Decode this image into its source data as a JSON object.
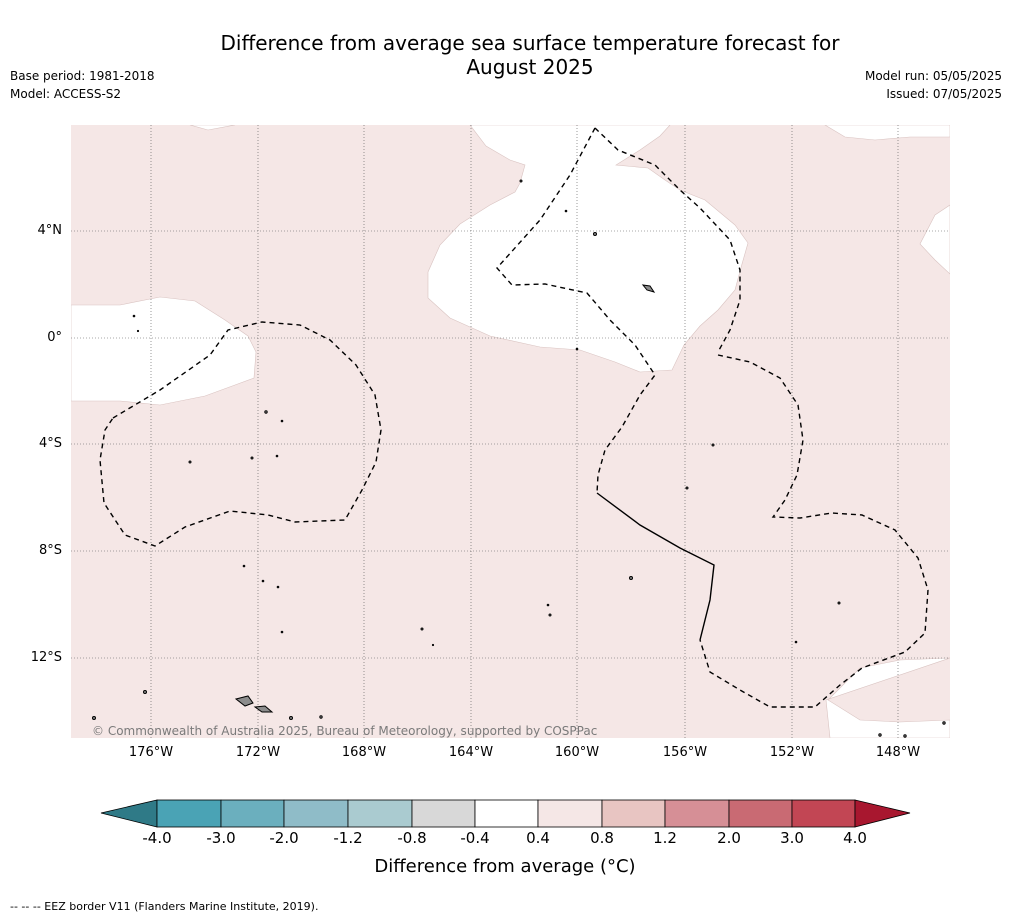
{
  "title_line1": "Difference from average sea surface temperature forecast for",
  "title_line2": "August 2025",
  "base_period": "Base period: 1981-2018",
  "model": "Model: ACCESS-S2",
  "model_run": "Model run: 05/05/2025",
  "issued": "Issued: 07/05/2025",
  "copyright": "© Commonwealth of Australia 2025, Bureau of Meteorology, supported by COSPPac",
  "lon_ticks": [
    "176°W",
    "172°W",
    "168°W",
    "164°W",
    "160°W",
    "156°W",
    "152°W",
    "148°W"
  ],
  "lat_ticks": [
    "4°N",
    "0°",
    "4°S",
    "8°S",
    "12°S"
  ],
  "colorbar": {
    "title": "Difference from average (°C)",
    "labels": [
      "-4.0",
      "-3.0",
      "-2.0",
      "-1.2",
      "-0.8",
      "-0.4",
      "0.4",
      "0.8",
      "1.2",
      "2.0",
      "3.0",
      "4.0"
    ],
    "colors": [
      "#2f7a87",
      "#4aa3b5",
      "#6bafbe",
      "#8fbcc8",
      "#aacbd0",
      "#d8d8d8",
      "#ffffff",
      "#f5e7e6",
      "#e8c5c2",
      "#d68f96",
      "#c96a73",
      "#c24654",
      "#a8172f"
    ]
  },
  "footer": "--  --  -- EEZ border V11 (Flanders Marine Institute, 2019).",
  "colors": {
    "anomaly_0_4_0_8": "#f5e7e6",
    "land": "#8c8c8c"
  }
}
